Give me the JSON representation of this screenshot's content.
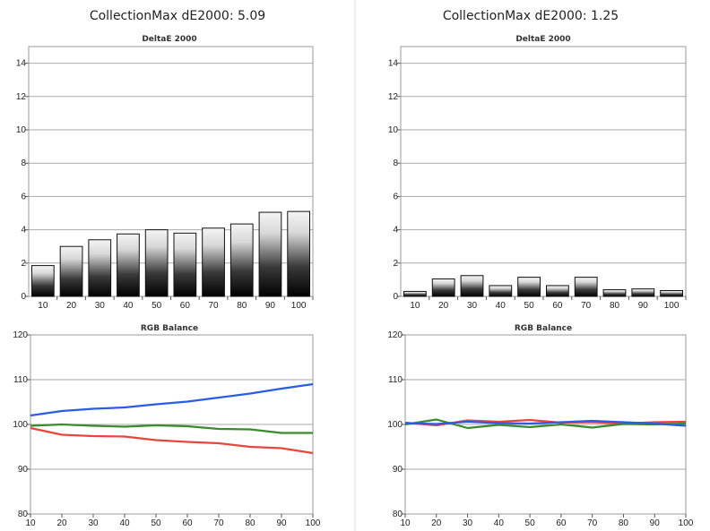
{
  "panels": [
    {
      "title": "CollectionMax dE2000: 5.09",
      "charts": [
        {
          "type": "bar",
          "title": "DeltaE 2000",
          "categories": [
            "10",
            "20",
            "30",
            "40",
            "50",
            "60",
            "70",
            "80",
            "90",
            "100"
          ],
          "values": [
            1.85,
            3.0,
            3.4,
            3.75,
            4.0,
            3.8,
            4.1,
            4.35,
            5.05,
            5.1
          ],
          "ylim": [
            0,
            15
          ],
          "yticks": [
            0,
            2,
            4,
            6,
            8,
            10,
            12,
            14
          ],
          "grid": true
        },
        {
          "type": "line",
          "title": "RGB Balance",
          "x": [
            10,
            20,
            30,
            40,
            50,
            60,
            70,
            80,
            90,
            100
          ],
          "xlim": [
            10,
            100
          ],
          "ylim": [
            80,
            120
          ],
          "yticks": [
            80,
            90,
            100,
            110,
            120
          ],
          "grid": true,
          "series": [
            {
              "color": "#e8453c",
              "values": [
                99.2,
                97.7,
                97.4,
                97.3,
                96.5,
                96.1,
                95.8,
                95.0,
                94.7,
                93.6
              ]
            },
            {
              "color": "#3a8a2e",
              "values": [
                99.7,
                100.0,
                99.7,
                99.5,
                99.8,
                99.6,
                99.0,
                98.9,
                98.1,
                98.1
              ]
            },
            {
              "color": "#2a5ce6",
              "values": [
                102.0,
                103.0,
                103.5,
                103.8,
                104.5,
                105.1,
                106.0,
                106.9,
                108.0,
                109.0
              ]
            }
          ]
        }
      ]
    },
    {
      "title": "CollectionMax dE2000: 1.25",
      "charts": [
        {
          "type": "bar",
          "title": "DeltaE 2000",
          "categories": [
            "10",
            "20",
            "30",
            "40",
            "50",
            "60",
            "70",
            "80",
            "90",
            "100"
          ],
          "values": [
            0.3,
            1.05,
            1.25,
            0.65,
            1.15,
            0.65,
            1.15,
            0.4,
            0.45,
            0.35
          ],
          "ylim": [
            0,
            15
          ],
          "yticks": [
            0,
            2,
            4,
            6,
            8,
            10,
            12,
            14
          ],
          "grid": true
        },
        {
          "type": "line",
          "title": "RGB Balance",
          "x": [
            10,
            20,
            30,
            40,
            50,
            60,
            70,
            80,
            90,
            100
          ],
          "xlim": [
            10,
            100
          ],
          "ylim": [
            80,
            120
          ],
          "yticks": [
            80,
            90,
            100,
            110,
            120
          ],
          "grid": true,
          "series": [
            {
              "color": "#e8453c",
              "values": [
                100.4,
                99.8,
                100.9,
                100.6,
                101.0,
                100.4,
                100.5,
                100.2,
                100.5,
                100.6
              ]
            },
            {
              "color": "#3a8a2e",
              "values": [
                100.0,
                101.1,
                99.2,
                99.9,
                99.4,
                100.0,
                99.3,
                100.1,
                100.0,
                100.2
              ]
            },
            {
              "color": "#2a5ce6",
              "values": [
                100.3,
                100.1,
                100.6,
                100.3,
                100.2,
                100.5,
                100.8,
                100.5,
                100.2,
                99.7
              ]
            }
          ]
        }
      ]
    }
  ]
}
